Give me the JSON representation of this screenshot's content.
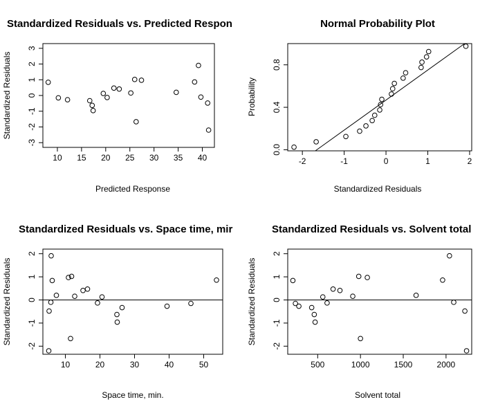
{
  "chart_data": [
    {
      "type": "scatter",
      "title": "Standardized Residuals vs. Predicted Respon",
      "xlabel": "Predicted Response",
      "ylabel": "Standardized Residuals",
      "xlim": [
        7,
        42.5
      ],
      "ylim": [
        -3.3,
        3.3
      ],
      "xticks": [
        10,
        15,
        20,
        25,
        30,
        35,
        40
      ],
      "yticks": [
        -3,
        -2,
        -1,
        0,
        1,
        2,
        3
      ],
      "ref_line": null,
      "grid": false,
      "points": [
        {
          "x": 8.1,
          "y": 0.84
        },
        {
          "x": 10.2,
          "y": -0.15
        },
        {
          "x": 12.1,
          "y": -0.27
        },
        {
          "x": 16.7,
          "y": -0.33
        },
        {
          "x": 17.2,
          "y": -0.63
        },
        {
          "x": 17.4,
          "y": -0.96
        },
        {
          "x": 19.5,
          "y": 0.13
        },
        {
          "x": 20.3,
          "y": -0.13
        },
        {
          "x": 21.7,
          "y": 0.47
        },
        {
          "x": 22.8,
          "y": 0.41
        },
        {
          "x": 25.2,
          "y": 0.16
        },
        {
          "x": 26.0,
          "y": 1.02
        },
        {
          "x": 26.3,
          "y": -1.67
        },
        {
          "x": 27.4,
          "y": 0.97
        },
        {
          "x": 34.6,
          "y": 0.2
        },
        {
          "x": 38.4,
          "y": 0.86
        },
        {
          "x": 39.2,
          "y": 1.91
        },
        {
          "x": 39.7,
          "y": -0.1
        },
        {
          "x": 41.1,
          "y": -0.48
        },
        {
          "x": 41.3,
          "y": -2.2
        }
      ]
    },
    {
      "type": "scatter",
      "title": "Normal Probability Plot",
      "xlabel": "Standardized Residuals",
      "ylabel": "Probability",
      "xlim": [
        -2.35,
        2.05
      ],
      "ylim": [
        -0.01,
        1.0
      ],
      "xticks": [
        -2,
        -1,
        0,
        1,
        2
      ],
      "yticks": [
        0.0,
        0.4,
        0.8
      ],
      "ytick_labels": [
        "0.0",
        "0.4",
        "0.8"
      ],
      "ref_line": {
        "x1": -1.69,
        "y1": -0.01,
        "x2": 1.88,
        "y2": 1.0
      },
      "grid": false,
      "points": [
        {
          "x": -2.2,
          "y": 0.025
        },
        {
          "x": -1.67,
          "y": 0.075
        },
        {
          "x": -0.96,
          "y": 0.125
        },
        {
          "x": -0.63,
          "y": 0.175
        },
        {
          "x": -0.48,
          "y": 0.225
        },
        {
          "x": -0.33,
          "y": 0.275
        },
        {
          "x": -0.27,
          "y": 0.325
        },
        {
          "x": -0.15,
          "y": 0.375
        },
        {
          "x": -0.13,
          "y": 0.425
        },
        {
          "x": -0.1,
          "y": 0.475
        },
        {
          "x": 0.13,
          "y": 0.525
        },
        {
          "x": 0.16,
          "y": 0.575
        },
        {
          "x": 0.2,
          "y": 0.625
        },
        {
          "x": 0.41,
          "y": 0.675
        },
        {
          "x": 0.47,
          "y": 0.725
        },
        {
          "x": 0.84,
          "y": 0.775
        },
        {
          "x": 0.86,
          "y": 0.825
        },
        {
          "x": 0.97,
          "y": 0.875
        },
        {
          "x": 1.02,
          "y": 0.925
        },
        {
          "x": 1.91,
          "y": 0.975
        }
      ]
    },
    {
      "type": "scatter",
      "title": "Standardized Residuals vs. Space time, mir",
      "xlabel": "Space time, min.",
      "ylabel": "Standardized Residuals",
      "xlim": [
        3.5,
        55.5
      ],
      "ylim": [
        -2.35,
        2.2
      ],
      "xticks": [
        10,
        20,
        30,
        40,
        50
      ],
      "yticks": [
        -2,
        -1,
        0,
        1,
        2
      ],
      "ref_line": {
        "y": 0
      },
      "grid": false,
      "points": [
        {
          "x": 5.2,
          "y": -2.2
        },
        {
          "x": 5.3,
          "y": -0.48
        },
        {
          "x": 5.8,
          "y": -0.1
        },
        {
          "x": 5.9,
          "y": 1.91
        },
        {
          "x": 6.2,
          "y": 0.84
        },
        {
          "x": 7.4,
          "y": 0.2
        },
        {
          "x": 10.9,
          "y": 0.97
        },
        {
          "x": 11.5,
          "y": -1.67
        },
        {
          "x": 11.8,
          "y": 1.02
        },
        {
          "x": 12.7,
          "y": 0.16
        },
        {
          "x": 15.1,
          "y": 0.41
        },
        {
          "x": 16.4,
          "y": 0.47
        },
        {
          "x": 19.3,
          "y": -0.13
        },
        {
          "x": 20.6,
          "y": 0.13
        },
        {
          "x": 24.9,
          "y": -0.63
        },
        {
          "x": 25.0,
          "y": -0.96
        },
        {
          "x": 26.4,
          "y": -0.33
        },
        {
          "x": 39.4,
          "y": -0.27
        },
        {
          "x": 46.3,
          "y": -0.15
        },
        {
          "x": 53.7,
          "y": 0.86
        }
      ]
    },
    {
      "type": "scatter",
      "title": "Standardized Residuals vs. Solvent total",
      "xlabel": "Solvent total",
      "ylabel": "Standardized Residuals",
      "xlim": [
        150,
        2300
      ],
      "ylim": [
        -2.35,
        2.2
      ],
      "xticks": [
        500,
        1000,
        1500,
        2000
      ],
      "yticks": [
        -2,
        -1,
        0,
        1,
        2
      ],
      "ref_line": {
        "y": 0
      },
      "grid": false,
      "points": [
        {
          "x": 210,
          "y": 0.84
        },
        {
          "x": 240,
          "y": -0.15
        },
        {
          "x": 280,
          "y": -0.27
        },
        {
          "x": 430,
          "y": -0.33
        },
        {
          "x": 460,
          "y": -0.63
        },
        {
          "x": 470,
          "y": -0.96
        },
        {
          "x": 560,
          "y": 0.13
        },
        {
          "x": 610,
          "y": -0.13
        },
        {
          "x": 680,
          "y": 0.47
        },
        {
          "x": 760,
          "y": 0.41
        },
        {
          "x": 910,
          "y": 0.16
        },
        {
          "x": 980,
          "y": 1.02
        },
        {
          "x": 1000,
          "y": -1.67
        },
        {
          "x": 1080,
          "y": 0.97
        },
        {
          "x": 1650,
          "y": 0.2
        },
        {
          "x": 1960,
          "y": 0.86
        },
        {
          "x": 2040,
          "y": 1.91
        },
        {
          "x": 2090,
          "y": -0.1
        },
        {
          "x": 2220,
          "y": -0.48
        },
        {
          "x": 2240,
          "y": -2.2
        }
      ]
    }
  ]
}
